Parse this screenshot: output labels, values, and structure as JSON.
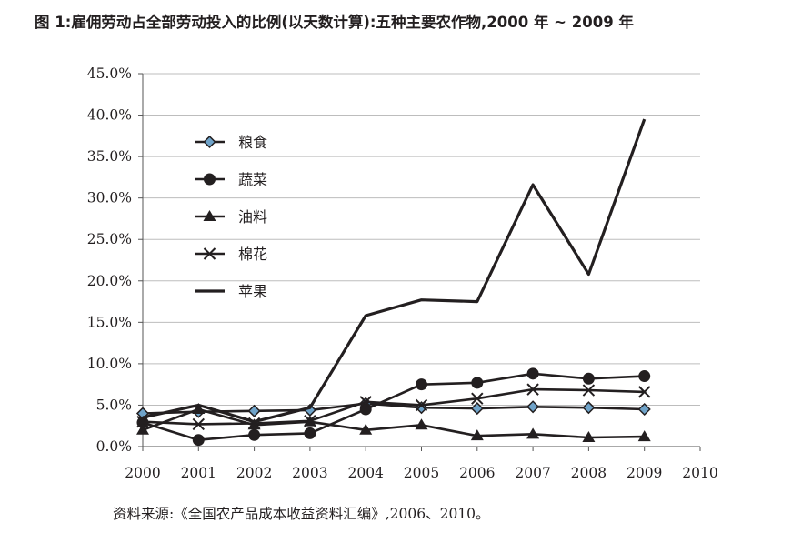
{
  "figure": {
    "title": "图 1:雇佣劳动占全部劳动投入的比例(以天数计算):五种主要农作物,2000 年 ~ 2009 年",
    "source": "资料来源:《全国农产品成本收益资料汇编》,2006、2010。"
  },
  "colors": {
    "line": "#231f20",
    "grain_marker_fill": "#6fa3c9",
    "grid": "#bdbdbd"
  },
  "chart_data": {
    "type": "line",
    "x": [
      2000,
      2001,
      2002,
      2003,
      2004,
      2005,
      2006,
      2007,
      2008,
      2009
    ],
    "x_ticks": [
      "2000",
      "2001",
      "2002",
      "2003",
      "2004",
      "2005",
      "2006",
      "2007",
      "2008",
      "2009",
      "2010"
    ],
    "xlim": [
      2000,
      2010
    ],
    "ylim": [
      0,
      45
    ],
    "y_unit": "%",
    "y_ticks": [
      "0.0%",
      "5.0%",
      "10.0%",
      "15.0%",
      "20.0%",
      "25.0%",
      "30.0%",
      "35.0%",
      "40.0%",
      "45.0%"
    ],
    "grid": "horizontal",
    "legend_position": "upper-left",
    "series": [
      {
        "name": "粮食",
        "marker": "diamond",
        "values": [
          4.0,
          4.2,
          4.3,
          4.4,
          5.2,
          4.7,
          4.6,
          4.8,
          4.7,
          4.5
        ]
      },
      {
        "name": "蔬菜",
        "marker": "circle",
        "values": [
          2.9,
          0.8,
          1.4,
          1.6,
          4.5,
          7.5,
          7.7,
          8.8,
          8.2,
          8.5
        ]
      },
      {
        "name": "油料",
        "marker": "triangle",
        "values": [
          2.0,
          4.5,
          2.6,
          3.0,
          2.0,
          2.6,
          1.3,
          1.5,
          1.1,
          1.2
        ]
      },
      {
        "name": "棉花",
        "marker": "x",
        "values": [
          3.0,
          2.7,
          2.8,
          3.1,
          5.4,
          5.0,
          5.8,
          6.9,
          6.8,
          6.6
        ]
      },
      {
        "name": "苹果",
        "marker": "none",
        "values": [
          3.5,
          5.0,
          3.0,
          4.7,
          15.8,
          17.7,
          17.5,
          31.6,
          20.8,
          39.5
        ]
      }
    ]
  }
}
